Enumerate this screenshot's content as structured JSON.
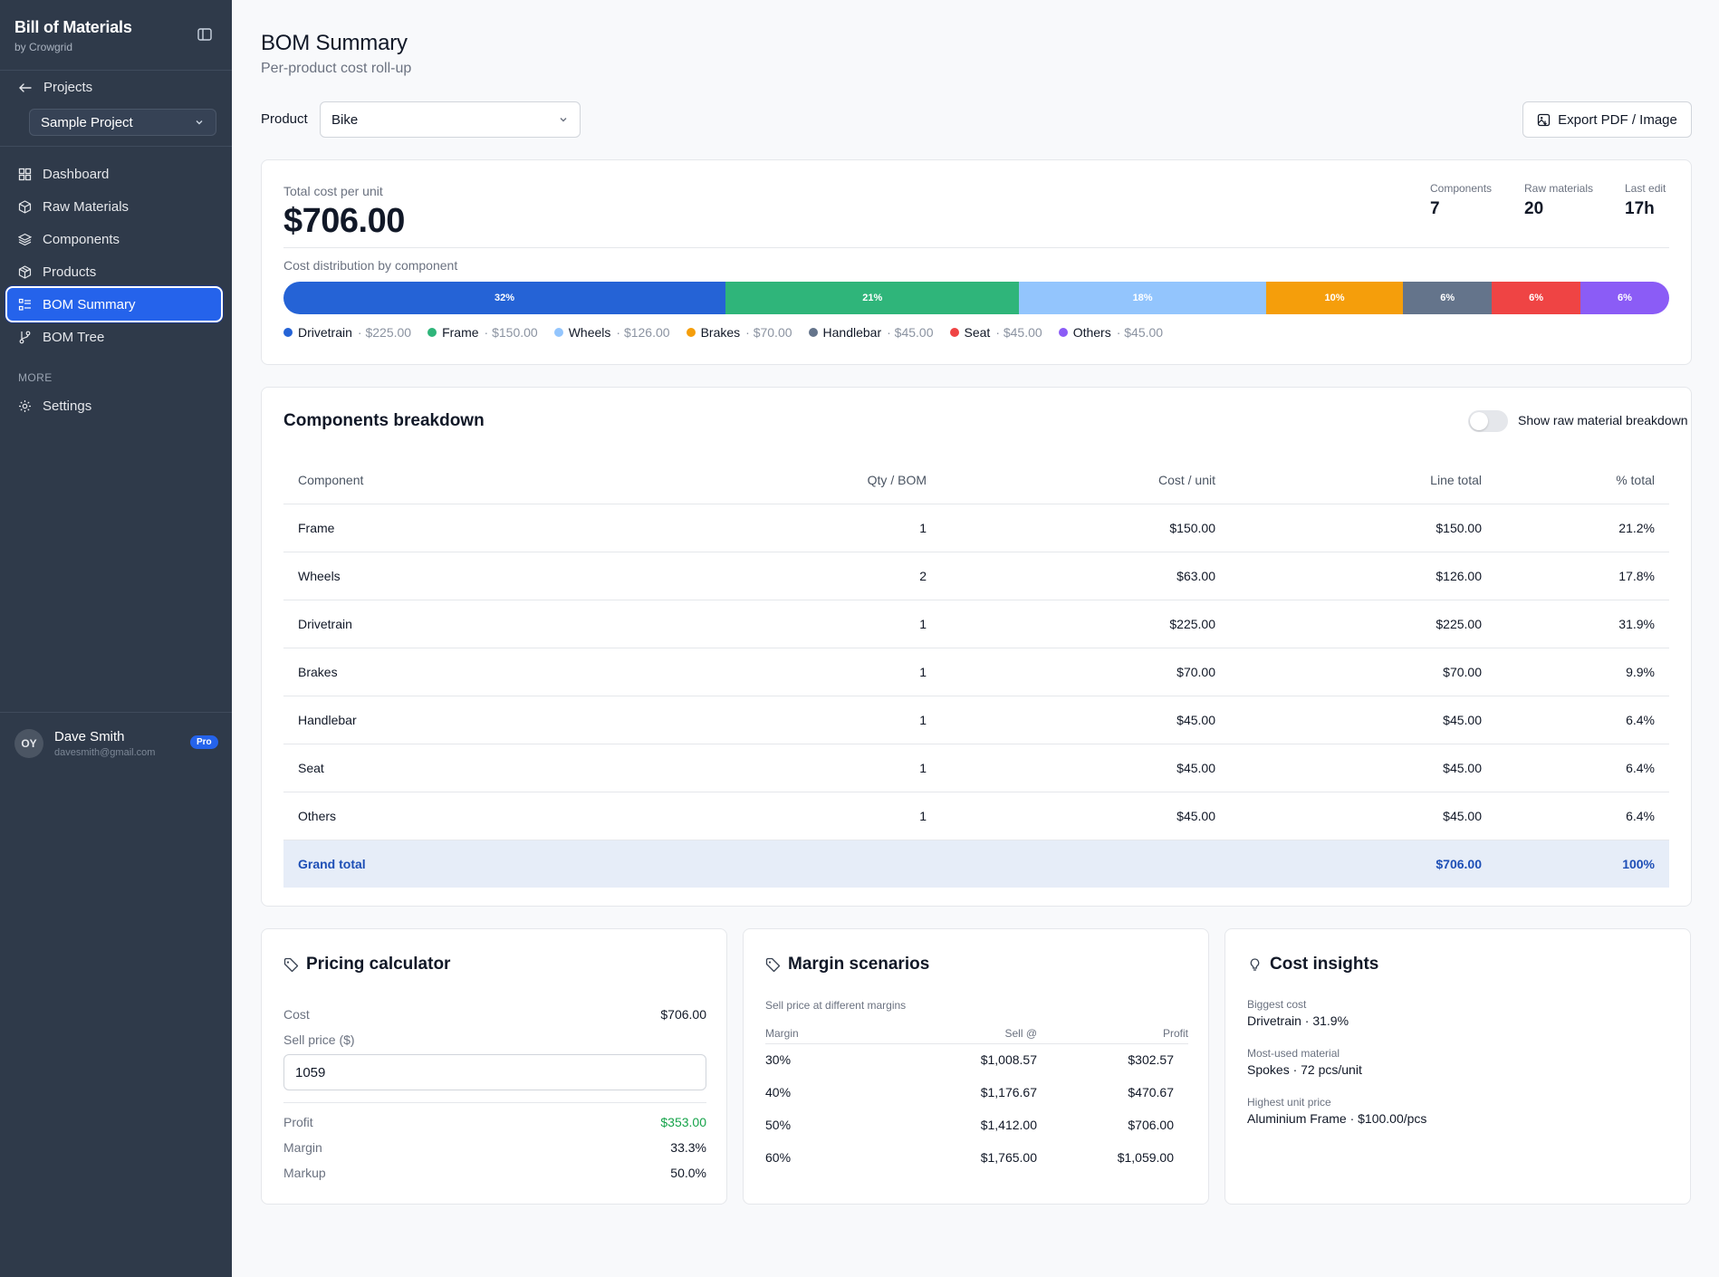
{
  "sidebar": {
    "brand_title": "Bill of Materials",
    "brand_sub": "by Crowgrid",
    "projects_label": "Projects",
    "project_selected": "Sample Project",
    "nav": [
      {
        "label": "Dashboard",
        "icon": "dashboard-icon"
      },
      {
        "label": "Raw Materials",
        "icon": "cube-icon"
      },
      {
        "label": "Components",
        "icon": "layers-icon"
      },
      {
        "label": "Products",
        "icon": "package-icon"
      },
      {
        "label": "BOM Summary",
        "icon": "list-icon",
        "active": true
      },
      {
        "label": "BOM Tree",
        "icon": "git-branch-icon"
      }
    ],
    "more_label": "MORE",
    "settings_label": "Settings",
    "user": {
      "initials": "OY",
      "name": "Dave Smith",
      "email": "davesmith@gmail.com",
      "badge": "Pro"
    }
  },
  "header": {
    "title": "BOM Summary",
    "subtitle": "Per-product cost roll-up",
    "product_label": "Product",
    "product_selected": "Bike",
    "export_label": "Export PDF / Image"
  },
  "summary": {
    "total_label": "Total cost per unit",
    "total_value": "$706.00",
    "stats": [
      {
        "label": "Components",
        "value": "7"
      },
      {
        "label": "Raw materials",
        "value": "20"
      },
      {
        "label": "Last edit",
        "value": "17h"
      }
    ],
    "dist_label": "Cost distribution by component",
    "distribution": [
      {
        "name": "Drivetrain",
        "value": "$225.00",
        "pct_label": "32%",
        "share": 31.9,
        "color": "#2563d6"
      },
      {
        "name": "Frame",
        "value": "$150.00",
        "pct_label": "21%",
        "share": 21.2,
        "color": "#2fb57a"
      },
      {
        "name": "Wheels",
        "value": "$126.00",
        "pct_label": "18%",
        "share": 17.8,
        "color": "#93c5fd"
      },
      {
        "name": "Brakes",
        "value": "$70.00",
        "pct_label": "10%",
        "share": 9.9,
        "color": "#f59e0b"
      },
      {
        "name": "Handlebar",
        "value": "$45.00",
        "pct_label": "6%",
        "share": 6.4,
        "color": "#64748b"
      },
      {
        "name": "Seat",
        "value": "$45.00",
        "pct_label": "6%",
        "share": 6.4,
        "color": "#ef4444"
      },
      {
        "name": "Others",
        "value": "$45.00",
        "pct_label": "6%",
        "share": 6.4,
        "color": "#8b5cf6"
      }
    ]
  },
  "breakdown": {
    "title": "Components breakdown",
    "toggle_label": "Show raw material breakdown",
    "columns": [
      "Component",
      "Qty / BOM",
      "Cost / unit",
      "Line total",
      "% total"
    ],
    "rows": [
      [
        "Frame",
        "1",
        "$150.00",
        "$150.00",
        "21.2%"
      ],
      [
        "Wheels",
        "2",
        "$63.00",
        "$126.00",
        "17.8%"
      ],
      [
        "Drivetrain",
        "1",
        "$225.00",
        "$225.00",
        "31.9%"
      ],
      [
        "Brakes",
        "1",
        "$70.00",
        "$70.00",
        "9.9%"
      ],
      [
        "Handlebar",
        "1",
        "$45.00",
        "$45.00",
        "6.4%"
      ],
      [
        "Seat",
        "1",
        "$45.00",
        "$45.00",
        "6.4%"
      ],
      [
        "Others",
        "1",
        "$45.00",
        "$45.00",
        "6.4%"
      ]
    ],
    "grand": {
      "label": "Grand total",
      "line_total": "$706.00",
      "pct": "100%"
    }
  },
  "pricing": {
    "title": "Pricing calculator",
    "cost_label": "Cost",
    "cost_value": "$706.00",
    "sell_label": "Sell price ($)",
    "sell_value": "1059",
    "profit_label": "Profit",
    "profit_value": "$353.00",
    "margin_label": "Margin",
    "margin_value": "33.3%",
    "markup_label": "Markup",
    "markup_value": "50.0%"
  },
  "margins": {
    "title": "Margin scenarios",
    "subtitle": "Sell price at different margins",
    "columns": [
      "Margin",
      "Sell @",
      "Profit"
    ],
    "rows": [
      [
        "30%",
        "$1,008.57",
        "$302.57"
      ],
      [
        "40%",
        "$1,176.67",
        "$470.67"
      ],
      [
        "50%",
        "$1,412.00",
        "$706.00"
      ],
      [
        "60%",
        "$1,765.00",
        "$1,059.00"
      ]
    ]
  },
  "insights": {
    "title": "Cost insights",
    "items": [
      {
        "label": "Biggest cost",
        "value": "Drivetrain · 31.9%"
      },
      {
        "label": "Most-used material",
        "value": "Spokes · 72 pcs/unit"
      },
      {
        "label": "Highest unit price",
        "value": "Aluminium Frame · $100.00/pcs"
      }
    ]
  }
}
